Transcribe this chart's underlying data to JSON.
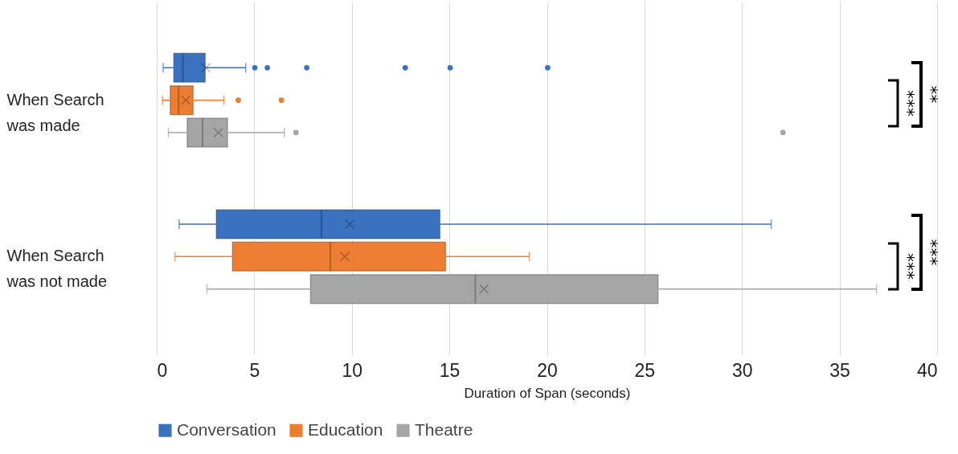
{
  "chart_data": {
    "type": "box",
    "xlabel": "Duration of Span (seconds)",
    "orientation": "horizontal",
    "categories": [
      "When Search\nwas made",
      "When Search\nwas not made"
    ],
    "series": [
      {
        "name": "Conversation",
        "color": "#3a72c0",
        "boxes": [
          {
            "low": 0.33,
            "q1": 0.87,
            "median": 1.34,
            "q3": 2.49,
            "high": 4.56,
            "mean": 2.52,
            "outliers": [
              5.03,
              5.67,
              7.69,
              12.74,
              15.04,
              20.04
            ]
          },
          {
            "low": 1.15,
            "q1": 3.05,
            "median": 8.44,
            "q3": 14.52,
            "high": 31.5,
            "mean": 9.9
          }
        ]
      },
      {
        "name": "Education",
        "color": "#ed7d31",
        "boxes": [
          {
            "low": 0.3,
            "q1": 0.69,
            "median": 1.12,
            "q3": 1.87,
            "high": 3.44,
            "mean": 1.49,
            "outliers": [
              4.18,
              6.39
            ]
          },
          {
            "low": 0.93,
            "q1": 3.88,
            "median": 8.9,
            "q3": 14.81,
            "high": 19.1,
            "mean": 9.64
          }
        ]
      },
      {
        "name": "Theatre",
        "color": "#a5a5a5",
        "boxes": [
          {
            "low": 0.6,
            "q1": 1.56,
            "median": 2.35,
            "q3": 3.63,
            "high": 6.54,
            "mean": 3.16,
            "outliers": [
              7.14,
              32.1
            ]
          },
          {
            "low": 2.57,
            "q1": 7.88,
            "median": 16.33,
            "q3": 25.7,
            "high": 36.9,
            "mean": 16.78
          }
        ]
      }
    ],
    "xlim": [
      0,
      40
    ],
    "xticks": [
      0,
      5,
      10,
      15,
      20,
      25,
      30,
      35,
      40
    ],
    "grid": "x",
    "legend": "bottom",
    "annotations": [
      "***",
      "**",
      "***",
      "***"
    ]
  }
}
